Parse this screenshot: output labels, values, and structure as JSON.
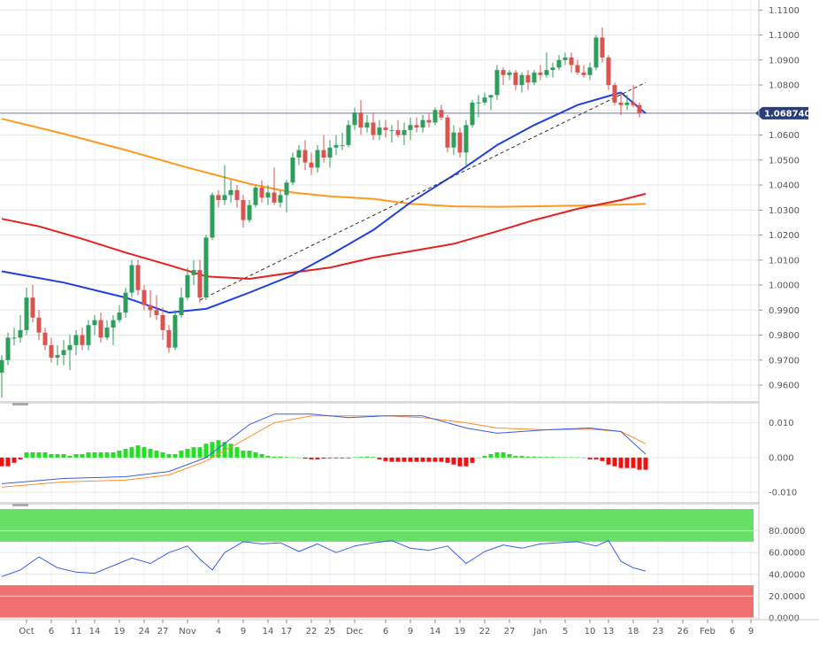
{
  "chart_data": {
    "type": "candlestick",
    "price_panel": {
      "y_ticks": [
        "1.1100",
        "1.1000",
        "1.0900",
        "1.0800",
        "1.0700",
        "1.0600",
        "1.0500",
        "1.0400",
        "1.0300",
        "1.0200",
        "1.0100",
        "1.0000",
        "0.9900",
        "0.9800",
        "0.9700",
        "0.9600"
      ],
      "ylim": [
        0.954,
        1.114
      ],
      "last_price_label": "1.068740",
      "last_price": 1.06874,
      "up_color": "#2e9e5b",
      "down_color": "#d9534f",
      "candles": [
        [
          0.965,
          0.972,
          0.955,
          0.97
        ],
        [
          0.97,
          0.981,
          0.968,
          0.979
        ],
        [
          0.979,
          0.983,
          0.976,
          0.979
        ],
        [
          0.979,
          0.988,
          0.977,
          0.982
        ],
        [
          0.982,
          0.999,
          0.98,
          0.995
        ],
        [
          0.995,
          1.0,
          0.985,
          0.987
        ],
        [
          0.987,
          0.99,
          0.978,
          0.981
        ],
        [
          0.981,
          0.983,
          0.974,
          0.976
        ],
        [
          0.976,
          0.979,
          0.969,
          0.971
        ],
        [
          0.971,
          0.976,
          0.968,
          0.972
        ],
        [
          0.972,
          0.978,
          0.968,
          0.974
        ],
        [
          0.974,
          0.98,
          0.966,
          0.976
        ],
        [
          0.976,
          0.982,
          0.972,
          0.98
        ],
        [
          0.98,
          0.983,
          0.974,
          0.976
        ],
        [
          0.976,
          0.986,
          0.974,
          0.984
        ],
        [
          0.984,
          0.988,
          0.98,
          0.986
        ],
        [
          0.986,
          0.989,
          0.977,
          0.979
        ],
        [
          0.979,
          0.986,
          0.978,
          0.983
        ],
        [
          0.983,
          0.988,
          0.976,
          0.986
        ],
        [
          0.986,
          0.992,
          0.985,
          0.989
        ],
        [
          0.989,
          0.999,
          0.987,
          0.997
        ],
        [
          0.997,
          1.01,
          0.995,
          1.008
        ],
        [
          1.008,
          1.01,
          0.996,
          0.998
        ],
        [
          0.998,
          1.0,
          0.99,
          0.992
        ],
        [
          0.992,
          0.998,
          0.987,
          0.99
        ],
        [
          0.99,
          0.996,
          0.986,
          0.988
        ],
        [
          0.988,
          0.991,
          0.978,
          0.982
        ],
        [
          0.982,
          0.984,
          0.973,
          0.975
        ],
        [
          0.975,
          0.99,
          0.974,
          0.988
        ],
        [
          0.988,
          0.999,
          0.987,
          0.995
        ],
        [
          0.995,
          1.007,
          0.994,
          1.004
        ],
        [
          1.004,
          1.01,
          1.0,
          1.006
        ],
        [
          1.006,
          1.01,
          0.993,
          0.995
        ],
        [
          0.995,
          1.02,
          0.994,
          1.019
        ],
        [
          1.019,
          1.037,
          1.018,
          1.036
        ],
        [
          1.036,
          1.038,
          1.031,
          1.034
        ],
        [
          1.034,
          1.048,
          1.032,
          1.036
        ],
        [
          1.036,
          1.042,
          1.033,
          1.038
        ],
        [
          1.038,
          1.04,
          1.031,
          1.034
        ],
        [
          1.034,
          1.036,
          1.023,
          1.026
        ],
        [
          1.026,
          1.034,
          1.025,
          1.032
        ],
        [
          1.032,
          1.04,
          1.031,
          1.039
        ],
        [
          1.039,
          1.042,
          1.033,
          1.035
        ],
        [
          1.035,
          1.04,
          1.032,
          1.037
        ],
        [
          1.037,
          1.047,
          1.032,
          1.033
        ],
        [
          1.033,
          1.038,
          1.031,
          1.036
        ],
        [
          1.036,
          1.042,
          1.029,
          1.041
        ],
        [
          1.041,
          1.053,
          1.04,
          1.051
        ],
        [
          1.051,
          1.056,
          1.048,
          1.054
        ],
        [
          1.054,
          1.058,
          1.046,
          1.049
        ],
        [
          1.049,
          1.053,
          1.044,
          1.047
        ],
        [
          1.047,
          1.056,
          1.045,
          1.054
        ],
        [
          1.054,
          1.06,
          1.049,
          1.051
        ],
        [
          1.051,
          1.058,
          1.047,
          1.055
        ],
        [
          1.055,
          1.06,
          1.052,
          1.056
        ],
        [
          1.056,
          1.061,
          1.054,
          1.056
        ],
        [
          1.056,
          1.066,
          1.055,
          1.064
        ],
        [
          1.064,
          1.071,
          1.062,
          1.069
        ],
        [
          1.069,
          1.074,
          1.06,
          1.063
        ],
        [
          1.063,
          1.068,
          1.061,
          1.065
        ],
        [
          1.065,
          1.069,
          1.058,
          1.06
        ],
        [
          1.06,
          1.066,
          1.058,
          1.063
        ],
        [
          1.063,
          1.066,
          1.059,
          1.062
        ],
        [
          1.062,
          1.064,
          1.057,
          1.062
        ],
        [
          1.062,
          1.066,
          1.059,
          1.06
        ],
        [
          1.06,
          1.065,
          1.056,
          1.062
        ],
        [
          1.062,
          1.067,
          1.058,
          1.064
        ],
        [
          1.064,
          1.067,
          1.061,
          1.063
        ],
        [
          1.063,
          1.068,
          1.061,
          1.066
        ],
        [
          1.066,
          1.069,
          1.063,
          1.065
        ],
        [
          1.065,
          1.071,
          1.064,
          1.07
        ],
        [
          1.07,
          1.072,
          1.066,
          1.067
        ],
        [
          1.067,
          1.068,
          1.053,
          1.055
        ],
        [
          1.055,
          1.064,
          1.052,
          1.061
        ],
        [
          1.061,
          1.063,
          1.051,
          1.053
        ],
        [
          1.053,
          1.066,
          1.048,
          1.064
        ],
        [
          1.064,
          1.074,
          1.063,
          1.073
        ],
        [
          1.073,
          1.076,
          1.067,
          1.073
        ],
        [
          1.073,
          1.077,
          1.072,
          1.075
        ],
        [
          1.075,
          1.076,
          1.07,
          1.076
        ],
        [
          1.076,
          1.088,
          1.074,
          1.086
        ],
        [
          1.086,
          1.087,
          1.08,
          1.084
        ],
        [
          1.084,
          1.086,
          1.082,
          1.085
        ],
        [
          1.085,
          1.086,
          1.078,
          1.08
        ],
        [
          1.08,
          1.085,
          1.077,
          1.084
        ],
        [
          1.084,
          1.086,
          1.078,
          1.081
        ],
        [
          1.081,
          1.086,
          1.08,
          1.085
        ],
        [
          1.085,
          1.088,
          1.082,
          1.084
        ],
        [
          1.084,
          1.093,
          1.083,
          1.086
        ],
        [
          1.086,
          1.089,
          1.083,
          1.087
        ],
        [
          1.087,
          1.092,
          1.086,
          1.09
        ],
        [
          1.09,
          1.093,
          1.088,
          1.091
        ],
        [
          1.091,
          1.093,
          1.085,
          1.088
        ],
        [
          1.088,
          1.09,
          1.084,
          1.085
        ],
        [
          1.085,
          1.088,
          1.083,
          1.084
        ],
        [
          1.084,
          1.089,
          1.082,
          1.087
        ],
        [
          1.087,
          1.1,
          1.086,
          1.099
        ],
        [
          1.099,
          1.103,
          1.089,
          1.091
        ],
        [
          1.091,
          1.092,
          1.078,
          1.08
        ],
        [
          1.08,
          1.081,
          1.072,
          1.073
        ],
        [
          1.073,
          1.077,
          1.068,
          1.072
        ],
        [
          1.072,
          1.076,
          1.07,
          1.073
        ],
        [
          1.073,
          1.08,
          1.071,
          1.072
        ],
        [
          1.072,
          1.073,
          1.067,
          1.0687
        ]
      ],
      "sma20": [
        [
          0,
          1.0055
        ],
        [
          10,
          1.001
        ],
        [
          20,
          0.995
        ],
        [
          27,
          0.989
        ],
        [
          33,
          0.9905
        ],
        [
          40,
          0.997
        ],
        [
          47,
          1.004
        ],
        [
          53,
          1.012
        ],
        [
          60,
          1.022
        ],
        [
          66,
          1.033
        ],
        [
          73,
          1.044
        ],
        [
          80,
          1.056
        ],
        [
          86,
          1.064
        ],
        [
          93,
          1.072
        ],
        [
          100,
          1.077
        ],
        [
          104,
          1.0687
        ]
      ],
      "sma100": [
        [
          0,
          1.0265
        ],
        [
          6,
          1.0235
        ],
        [
          13,
          1.0185
        ],
        [
          20,
          1.013
        ],
        [
          27,
          1.008
        ],
        [
          33,
          1.0035
        ],
        [
          40,
          1.0025
        ],
        [
          47,
          1.005
        ],
        [
          53,
          1.007
        ],
        [
          60,
          1.011
        ],
        [
          66,
          1.0135
        ],
        [
          73,
          1.0165
        ],
        [
          80,
          1.0215
        ],
        [
          86,
          1.026
        ],
        [
          93,
          1.0305
        ],
        [
          100,
          1.034
        ],
        [
          104,
          1.0365
        ]
      ],
      "sma200": [
        [
          0,
          1.0665
        ],
        [
          10,
          1.0605
        ],
        [
          20,
          1.054
        ],
        [
          30,
          1.047
        ],
        [
          40,
          1.0405
        ],
        [
          47,
          1.037
        ],
        [
          53,
          1.0355
        ],
        [
          60,
          1.0345
        ],
        [
          66,
          1.0325
        ],
        [
          73,
          1.0315
        ],
        [
          80,
          1.0313
        ],
        [
          86,
          1.0315
        ],
        [
          93,
          1.0318
        ],
        [
          100,
          1.0322
        ],
        [
          104,
          1.0325
        ]
      ],
      "horizontal_line": 1.06874,
      "trendline": [
        [
          32,
          0.994
        ],
        [
          104,
          1.081
        ]
      ]
    },
    "macd_panel": {
      "y_ticks": [
        "0.010",
        "0.000",
        "-0.010"
      ],
      "ylim": [
        -0.0125,
        0.015
      ],
      "macd": [
        [
          0,
          -0.0075
        ],
        [
          10,
          -0.006
        ],
        [
          20,
          -0.0055
        ],
        [
          27,
          -0.004
        ],
        [
          33,
          0.0
        ],
        [
          40,
          0.0095
        ],
        [
          44,
          0.0125
        ],
        [
          50,
          0.0125
        ],
        [
          56,
          0.0115
        ],
        [
          62,
          0.012
        ],
        [
          68,
          0.012
        ],
        [
          75,
          0.0085
        ],
        [
          80,
          0.007
        ],
        [
          88,
          0.008
        ],
        [
          95,
          0.0085
        ],
        [
          100,
          0.0075
        ],
        [
          104,
          0.001
        ]
      ],
      "signal": [
        [
          0,
          -0.0085
        ],
        [
          10,
          -0.007
        ],
        [
          20,
          -0.0065
        ],
        [
          27,
          -0.005
        ],
        [
          33,
          -0.001
        ],
        [
          40,
          0.006
        ],
        [
          44,
          0.01
        ],
        [
          50,
          0.012
        ],
        [
          56,
          0.012
        ],
        [
          62,
          0.012
        ],
        [
          68,
          0.0115
        ],
        [
          75,
          0.01
        ],
        [
          80,
          0.0085
        ],
        [
          88,
          0.008
        ],
        [
          95,
          0.0082
        ],
        [
          100,
          0.0075
        ],
        [
          104,
          0.004
        ]
      ],
      "histogram": [
        -0.0025,
        -0.0025,
        -0.0015,
        -0.0005,
        0.0015,
        0.0015,
        0.0015,
        0.0015,
        0.001,
        0.001,
        0.001,
        0.0005,
        0.001,
        0.001,
        0.0015,
        0.0015,
        0.0015,
        0.0015,
        0.0015,
        0.002,
        0.0025,
        0.003,
        0.0035,
        0.003,
        0.0025,
        0.002,
        0.0015,
        0.001,
        0.001,
        0.002,
        0.0025,
        0.003,
        0.003,
        0.004,
        0.0045,
        0.005,
        0.0045,
        0.004,
        0.003,
        0.002,
        0.002,
        0.0015,
        0.001,
        0.0005,
        0.0003,
        0.0003,
        0.0002,
        0.0001,
        0.0,
        -0.0003,
        -0.0005,
        -0.0005,
        -0.0003,
        -0.0002,
        -0.0002,
        -0.0002,
        -0.0002,
        0.0001,
        0.0002,
        0.0003,
        0.0002,
        -0.0005,
        -0.001,
        -0.0012,
        -0.0012,
        -0.0012,
        -0.0012,
        -0.0012,
        -0.0012,
        -0.0012,
        -0.0012,
        -0.0012,
        -0.0015,
        -0.002,
        -0.0025,
        -0.0025,
        -0.0015,
        0.0,
        0.0005,
        0.001,
        0.0015,
        0.0015,
        0.001,
        0.0005,
        0.0005,
        0.0003,
        0.0003,
        0.0002,
        0.0002,
        0.0002,
        0.0001,
        0.0001,
        0.0001,
        0.0001,
        0.0,
        -0.0005,
        -0.0005,
        -0.001,
        -0.002,
        -0.0025,
        -0.003,
        -0.003,
        -0.003,
        -0.0035,
        -0.0035
      ]
    },
    "rsi_panel": {
      "y_ticks": [
        "80.0000",
        "60.0000",
        "40.0000",
        "20.0000",
        "0.0000"
      ],
      "ylim": [
        0,
        100
      ],
      "overbought_band": [
        70,
        100
      ],
      "oversold_band": [
        0,
        30
      ],
      "band_colors": {
        "overbought": "#66e066",
        "oversold": "#f07070"
      },
      "rsi": [
        [
          0,
          38
        ],
        [
          3,
          44
        ],
        [
          6,
          56
        ],
        [
          9,
          46
        ],
        [
          12,
          42
        ],
        [
          15,
          41
        ],
        [
          18,
          48
        ],
        [
          21,
          55
        ],
        [
          24,
          50
        ],
        [
          27,
          60
        ],
        [
          30,
          66
        ],
        [
          32,
          54
        ],
        [
          34,
          44
        ],
        [
          36,
          60
        ],
        [
          39,
          70
        ],
        [
          42,
          68
        ],
        [
          45,
          69
        ],
        [
          48,
          61
        ],
        [
          51,
          68
        ],
        [
          54,
          60
        ],
        [
          57,
          66
        ],
        [
          60,
          69
        ],
        [
          63,
          71
        ],
        [
          66,
          64
        ],
        [
          69,
          62
        ],
        [
          72,
          66
        ],
        [
          75,
          50
        ],
        [
          78,
          61
        ],
        [
          81,
          67
        ],
        [
          84,
          64
        ],
        [
          87,
          68
        ],
        [
          90,
          69
        ],
        [
          93,
          70
        ],
        [
          96,
          66
        ],
        [
          98,
          71
        ],
        [
          100,
          52
        ],
        [
          102,
          46
        ],
        [
          104,
          43
        ]
      ]
    },
    "x_axis": {
      "tick_labels": [
        "Oct",
        "6",
        "11",
        "14",
        "19",
        "24",
        "27",
        "Nov",
        "4",
        "9",
        "14",
        "17",
        "22",
        "25",
        "Dec",
        "6",
        "9",
        "14",
        "19",
        "22",
        "27",
        "Jan",
        "5",
        "10",
        "13",
        "18",
        "23",
        "26",
        "Feb",
        "6",
        "9"
      ],
      "tick_bar_index": [
        4,
        8,
        12,
        15,
        19,
        23,
        26,
        30,
        35,
        39,
        43,
        46,
        50,
        53,
        57,
        62,
        66,
        70,
        74,
        78,
        82,
        87,
        91,
        95,
        98,
        102,
        106,
        110,
        114,
        118,
        121
      ]
    }
  }
}
